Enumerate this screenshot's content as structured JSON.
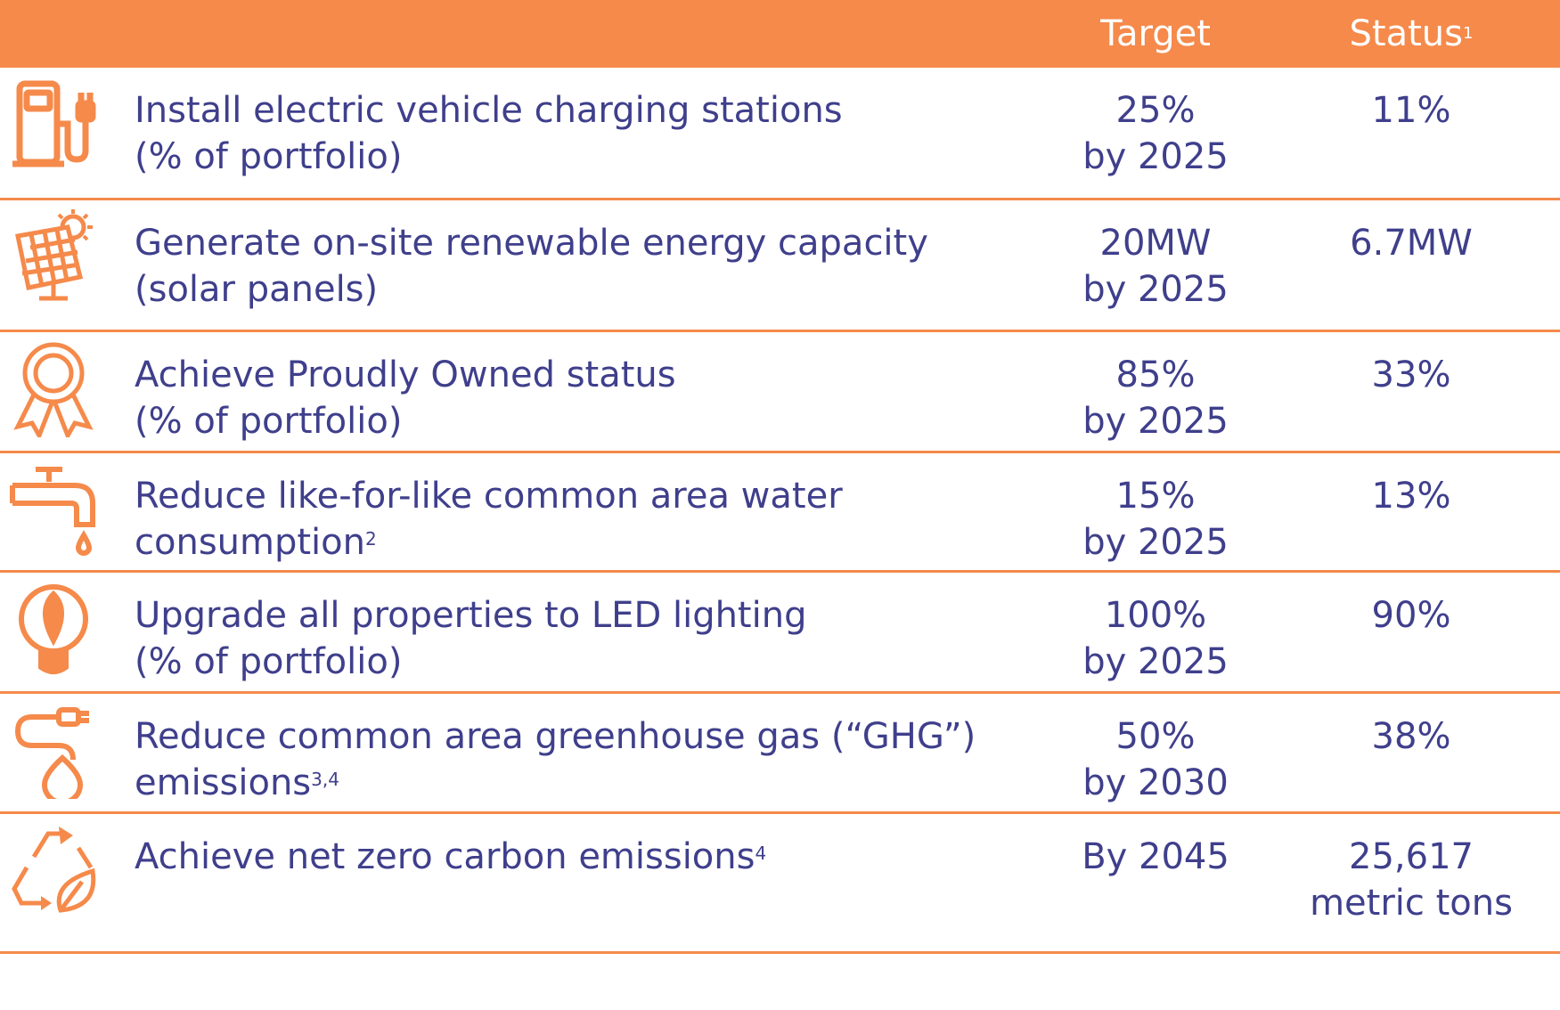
{
  "header": {
    "target": "Target",
    "status": "Status",
    "status_sup": "1"
  },
  "colors": {
    "accent": "#f58a4b",
    "text": "#3f3f8c"
  },
  "rows": [
    {
      "icon": "ev-charger-icon",
      "desc": "Install electric vehicle charging stations\n(% of portfolio)",
      "desc_sup": "",
      "target": "25%\nby 2025",
      "status": "11%"
    },
    {
      "icon": "solar-panel-icon",
      "desc": "Generate on-site renewable energy capacity\n(solar panels)",
      "desc_sup": "",
      "target": "20MW\nby 2025",
      "status": "6.7MW"
    },
    {
      "icon": "award-ribbon-icon",
      "desc": "Achieve Proudly Owned status\n(% of portfolio)",
      "desc_sup": "",
      "target": "85%\nby 2025",
      "status": "33%"
    },
    {
      "icon": "water-faucet-icon",
      "desc": "Reduce like-for-like common area water\nconsumption",
      "desc_sup": "2",
      "target": "15%\nby 2025",
      "status": "13%"
    },
    {
      "icon": "led-bulb-icon",
      "desc": "Upgrade all properties to LED lighting\n(% of portfolio)",
      "desc_sup": "",
      "target": "100%\nby 2025",
      "status": "90%"
    },
    {
      "icon": "green-energy-plug-icon",
      "desc": "Reduce common area greenhouse gas (“GHG”)\nemissions",
      "desc_sup": "3,4",
      "target": "50%\nby 2030",
      "status": "38%"
    },
    {
      "icon": "recycle-leaf-icon",
      "desc": "Achieve net zero carbon emissions",
      "desc_sup": "4",
      "target": "By 2045",
      "status": "25,617\nmetric tons"
    }
  ]
}
